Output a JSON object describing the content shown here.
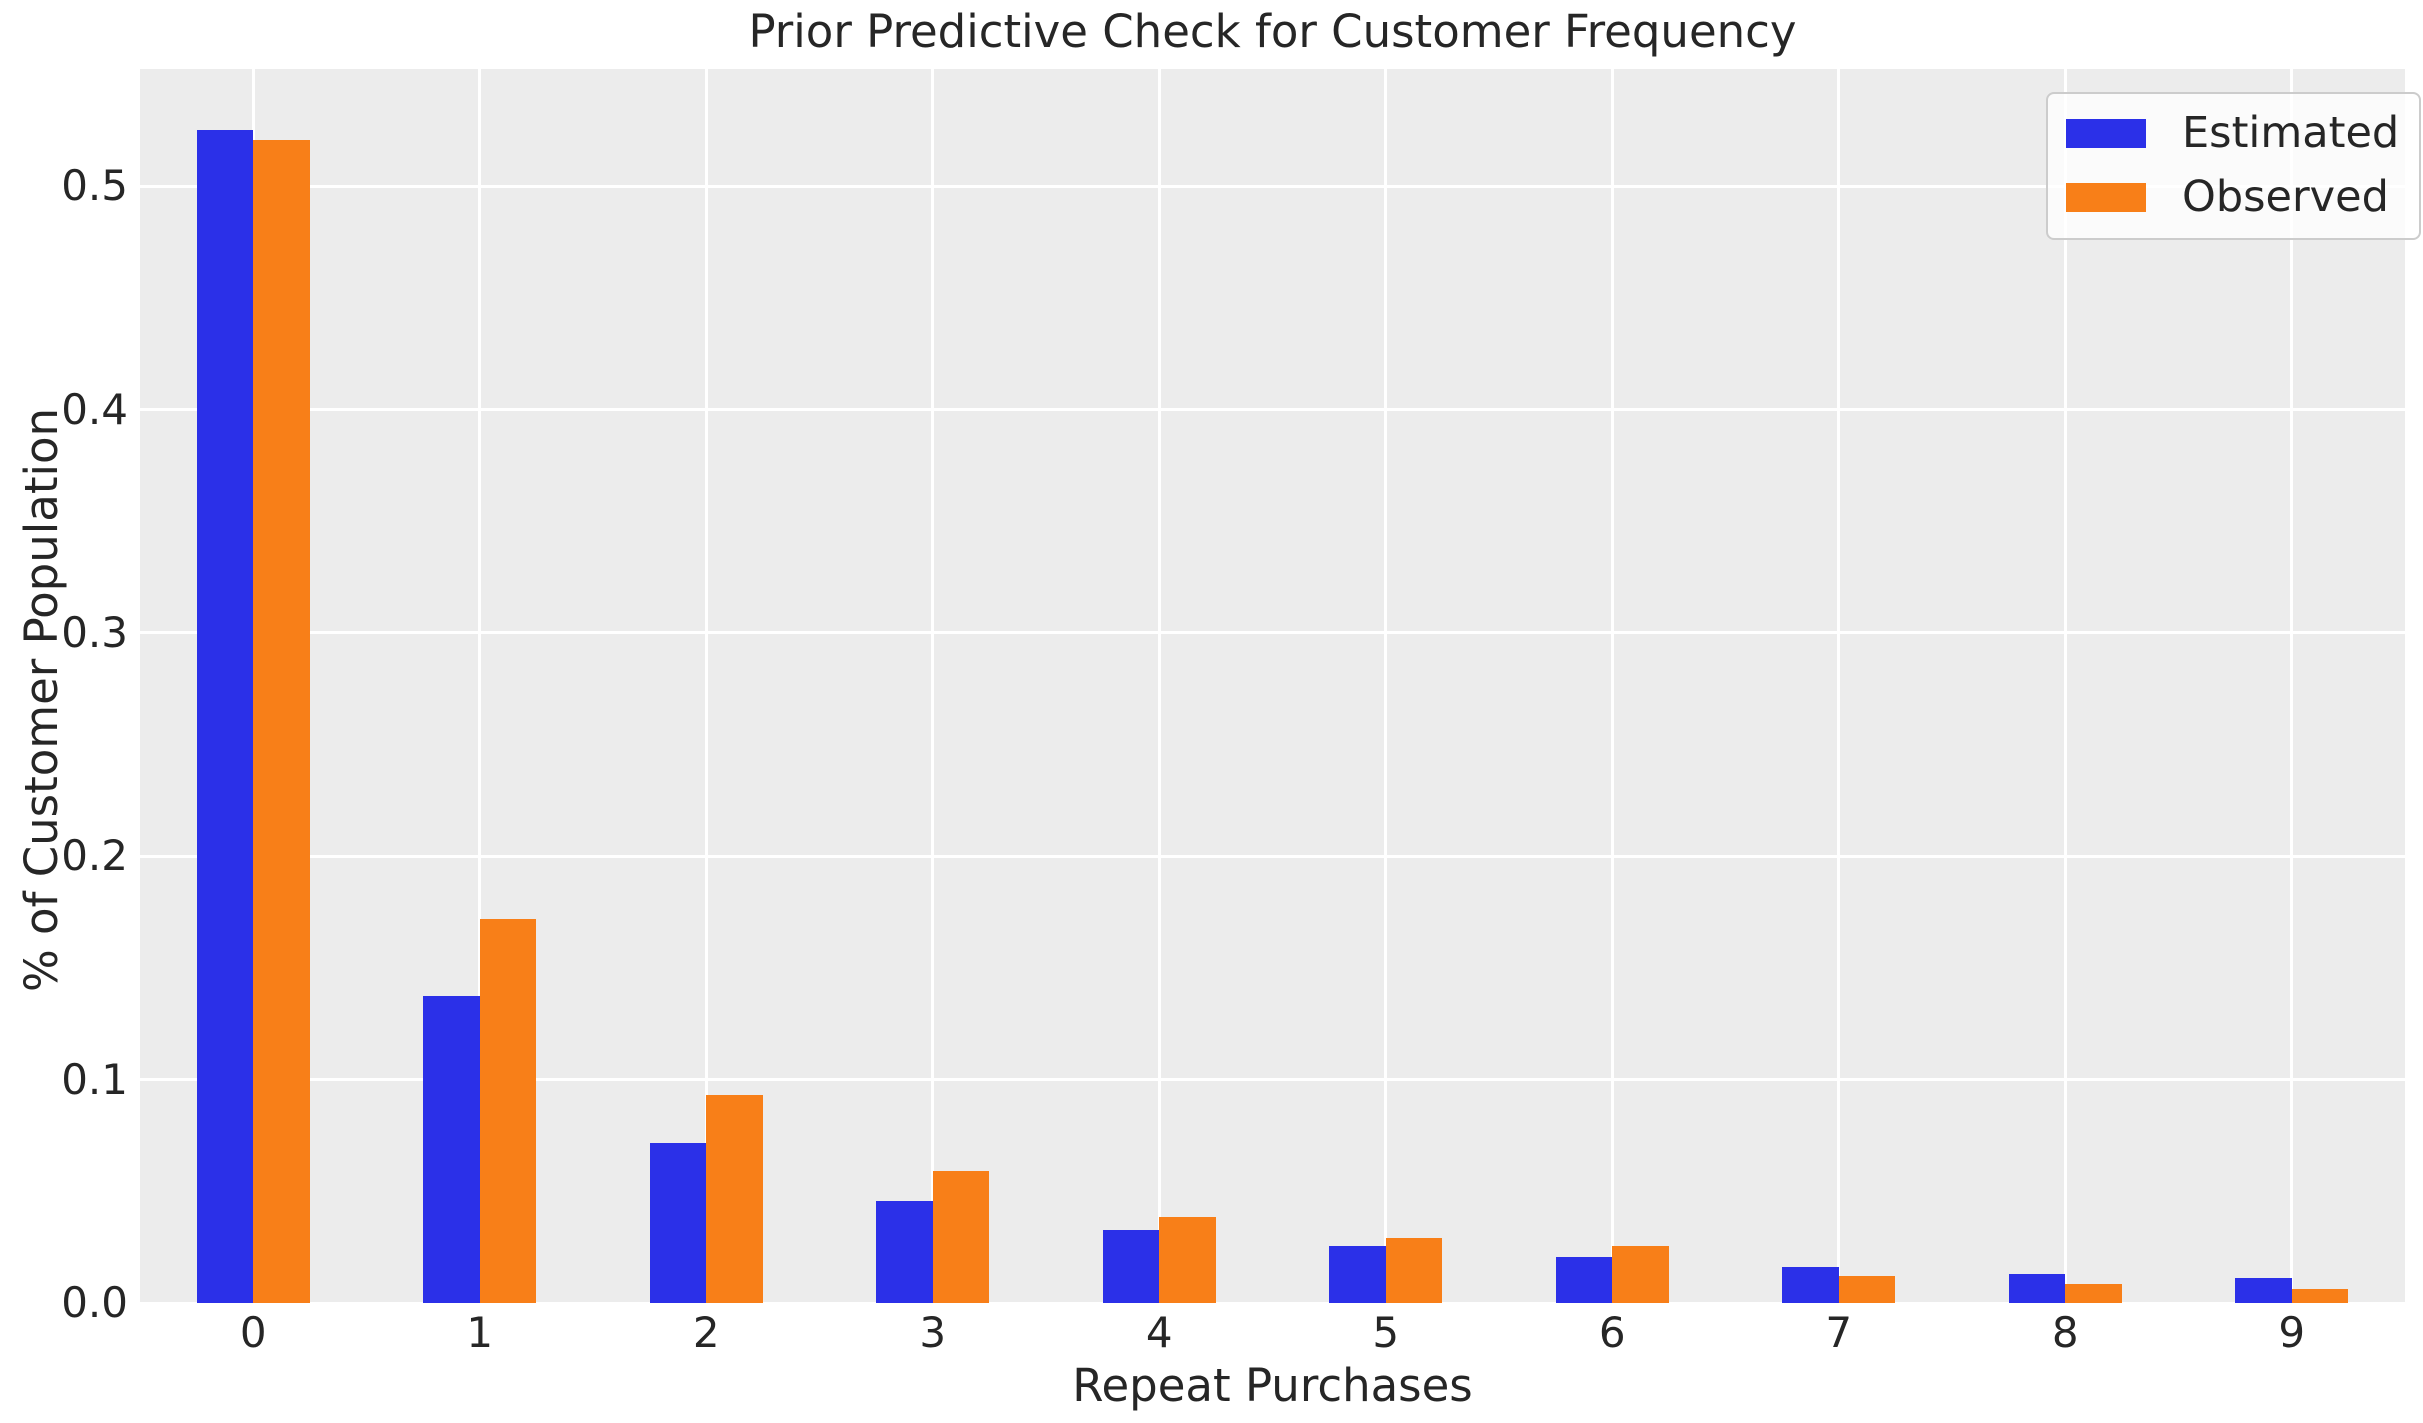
{
  "chart_data": {
    "type": "bar",
    "title": "Prior Predictive Check for Customer Frequency",
    "xlabel": "Repeat Purchases",
    "ylabel": "% of Customer Population",
    "categories": [
      "0",
      "1",
      "2",
      "3",
      "4",
      "5",
      "6",
      "7",
      "8",
      "9"
    ],
    "series": [
      {
        "name": "Estimated",
        "color": "#2b30e8",
        "values": [
          0.5254,
          0.1374,
          0.0716,
          0.0457,
          0.0327,
          0.0257,
          0.0206,
          0.0161,
          0.0132,
          0.0114
        ]
      },
      {
        "name": "Observed",
        "color": "#f87f18",
        "values": [
          0.5206,
          0.1719,
          0.093,
          0.0591,
          0.0385,
          0.0292,
          0.0257,
          0.012,
          0.0085,
          0.0064
        ]
      }
    ],
    "ylim": [
      0,
      0.5525
    ],
    "yticks": [
      "0.0",
      "0.1",
      "0.2",
      "0.3",
      "0.4",
      "0.5"
    ],
    "grid": true,
    "legend_position": "upper right",
    "style": {
      "plot_background": "#ececec",
      "gridline_color": "#ffffff",
      "text_color": "#262626",
      "figure_background": "#ffffff"
    }
  }
}
